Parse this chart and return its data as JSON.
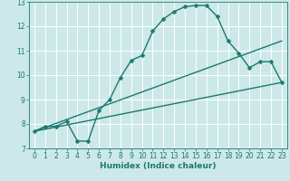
{
  "xlabel": "Humidex (Indice chaleur)",
  "xlim": [
    -0.5,
    23.5
  ],
  "ylim": [
    7,
    13
  ],
  "yticks": [
    7,
    8,
    9,
    10,
    11,
    12,
    13
  ],
  "xticks": [
    0,
    1,
    2,
    3,
    4,
    5,
    6,
    7,
    8,
    9,
    10,
    11,
    12,
    13,
    14,
    15,
    16,
    17,
    18,
    19,
    20,
    21,
    22,
    23
  ],
  "bg_color": "#cde8e8",
  "grid_color": "#b0d8d8",
  "line_color": "#1a7a6e",
  "line1_x": [
    0,
    1,
    2,
    3,
    4,
    5,
    6,
    7,
    8,
    9,
    10,
    11,
    12,
    13,
    14,
    15,
    16,
    17,
    18,
    19,
    20,
    21,
    22,
    23
  ],
  "line1_y": [
    7.7,
    7.9,
    7.9,
    8.1,
    7.3,
    7.3,
    8.55,
    9.0,
    9.9,
    10.6,
    10.8,
    11.8,
    12.3,
    12.6,
    12.8,
    12.85,
    12.85,
    12.4,
    11.4,
    10.9,
    10.3,
    10.55,
    10.55,
    9.7
  ],
  "line2_x": [
    0,
    23
  ],
  "line2_y": [
    7.7,
    9.7
  ],
  "line3_x": [
    0,
    23
  ],
  "line3_y": [
    7.7,
    11.4
  ],
  "markersize": 2.5,
  "linewidth": 1.0,
  "tick_fontsize": 5.5,
  "xlabel_fontsize": 6.5
}
